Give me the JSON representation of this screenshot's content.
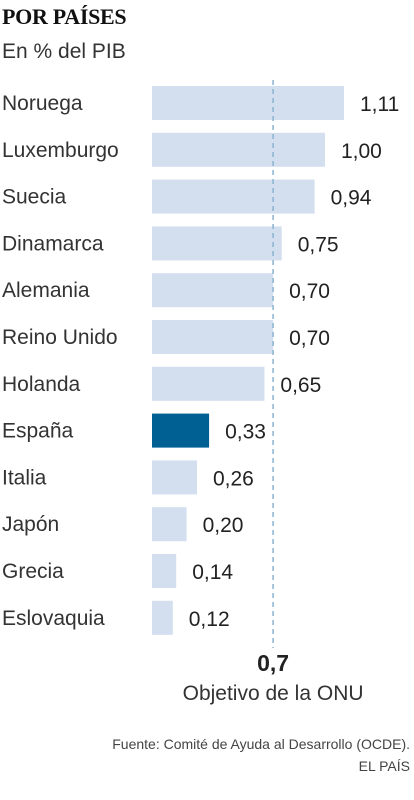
{
  "chart_data": {
    "type": "bar",
    "orientation": "horizontal",
    "title": "POR PAÍSES",
    "subtitle": "En % del PIB",
    "categories": [
      "Noruega",
      "Luxemburgo",
      "Suecia",
      "Dinamarca",
      "Alemania",
      "Reino Unido",
      "Holanda",
      "España",
      "Italia",
      "Japón",
      "Grecia",
      "Eslovaquia"
    ],
    "values": [
      1.11,
      1.0,
      0.94,
      0.75,
      0.7,
      0.7,
      0.65,
      0.33,
      0.26,
      0.2,
      0.14,
      0.12
    ],
    "value_labels": [
      "1,11",
      "1,00",
      "0,94",
      "0,75",
      "0,70",
      "0,70",
      "0,65",
      "0,33",
      "0,26",
      "0,20",
      "0,14",
      "0,12"
    ],
    "highlight": "España",
    "xlim": [
      0,
      1.11
    ],
    "reference_line": {
      "value": 0.7,
      "value_label": "0,7",
      "label": "Objetivo de la ONU"
    },
    "grid": false,
    "legend": "none"
  },
  "colors": {
    "bar": "#d3deef",
    "highlight": "#005f93",
    "reference_line": "#8bb3cf"
  },
  "footer": {
    "source": "Fuente: Comité de Ayuda al Desarrollo (OCDE).",
    "brand": "EL PAÍS"
  }
}
